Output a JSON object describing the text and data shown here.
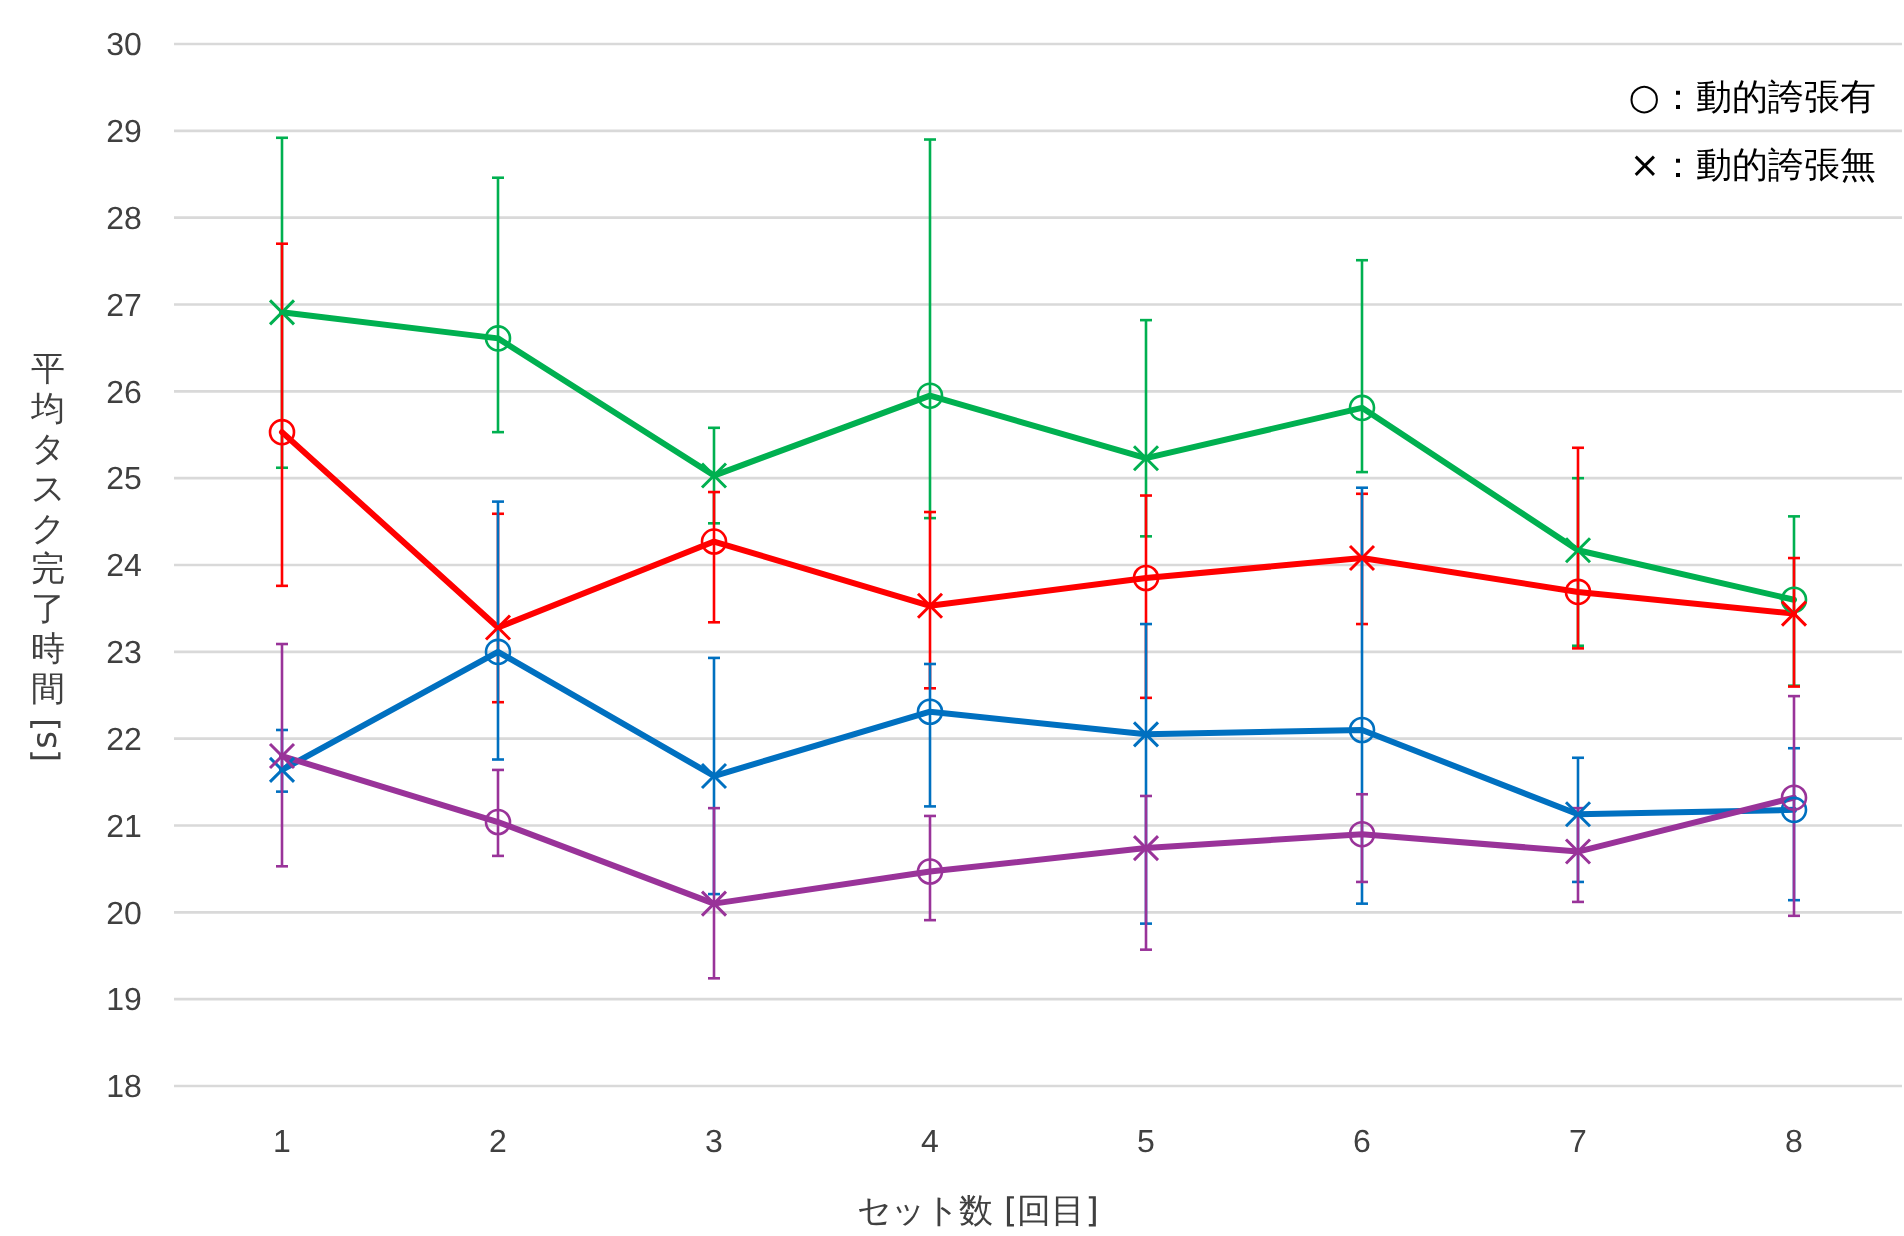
{
  "chart_data": {
    "type": "line",
    "xlabel": "セット数 [回目]",
    "ylabel": "平均タスク完了時間[s]",
    "categories": [
      "1",
      "2",
      "3",
      "4",
      "5",
      "6",
      "7",
      "8"
    ],
    "ylim": [
      18,
      30
    ],
    "yticks": [
      18,
      19,
      20,
      21,
      22,
      23,
      24,
      25,
      26,
      27,
      28,
      29,
      30
    ],
    "grid": "y",
    "annotations": [
      "○：動的誇張有",
      "×：動的誇張無"
    ],
    "marker": "none",
    "line_style": "solid",
    "series": [
      {
        "color": "#00b050",
        "values": [
          26.91,
          26.61,
          25.03,
          25.95,
          25.23,
          25.81,
          24.17,
          23.6
        ],
        "errors": [
          [
            25.12,
            28.92
          ],
          [
            25.53,
            28.46
          ],
          [
            24.48,
            25.58
          ],
          [
            24.54,
            28.9
          ],
          [
            24.33,
            26.82
          ],
          [
            25.07,
            27.51
          ],
          [
            23.07,
            25.0
          ],
          [
            22.61,
            24.56
          ]
        ]
      },
      {
        "color": "#ff0000",
        "values": [
          25.53,
          23.28,
          24.27,
          23.53,
          23.85,
          24.08,
          23.69,
          23.44
        ],
        "errors": [
          [
            23.76,
            27.7
          ],
          [
            22.42,
            24.59
          ],
          [
            23.34,
            24.84
          ],
          [
            22.58,
            24.61
          ],
          [
            22.47,
            24.8
          ],
          [
            23.32,
            24.82
          ],
          [
            23.04,
            25.35
          ],
          [
            22.6,
            24.08
          ]
        ]
      },
      {
        "color": "#0070c0",
        "values": [
          21.64,
          23.0,
          21.57,
          22.31,
          22.05,
          22.1,
          21.13,
          21.18
        ],
        "errors": [
          [
            21.39,
            22.1
          ],
          [
            21.76,
            24.73
          ],
          [
            20.21,
            22.93
          ],
          [
            21.22,
            22.86
          ],
          [
            19.87,
            23.32
          ],
          [
            20.1,
            24.89
          ],
          [
            20.35,
            21.78
          ],
          [
            20.14,
            21.89
          ]
        ]
      },
      {
        "color": "#993399",
        "values": [
          21.8,
          21.04,
          20.1,
          20.47,
          20.74,
          20.9,
          20.7,
          21.32
        ],
        "errors": [
          [
            20.53,
            23.09
          ],
          [
            20.65,
            21.64
          ],
          [
            19.24,
            21.2
          ],
          [
            19.91,
            21.11
          ],
          [
            19.57,
            21.34
          ],
          [
            20.35,
            21.36
          ],
          [
            20.12,
            21.2
          ],
          [
            19.96,
            22.49
          ]
        ]
      },
      {
        "type": "scatter",
        "marker": "circle",
        "x": [
          "2",
          "4",
          "6",
          "8",
          "1",
          "3",
          "5",
          "7",
          "2",
          "4",
          "6",
          "8",
          "2",
          "4",
          "6",
          "8"
        ],
        "values": [
          26.61,
          25.95,
          25.81,
          23.6,
          25.53,
          24.27,
          23.85,
          23.69,
          23.0,
          22.31,
          22.1,
          21.18,
          21.04,
          20.47,
          20.9,
          21.32
        ],
        "colors": [
          "#00b050",
          "#00b050",
          "#00b050",
          "#00b050",
          "#ff0000",
          "#ff0000",
          "#ff0000",
          "#ff0000",
          "#0070c0",
          "#0070c0",
          "#0070c0",
          "#0070c0",
          "#993399",
          "#993399",
          "#993399",
          "#993399"
        ]
      },
      {
        "type": "scatter",
        "marker": "cross",
        "x": [
          "1",
          "3",
          "5",
          "7",
          "2",
          "4",
          "6",
          "8",
          "1",
          "3",
          "5",
          "7",
          "1",
          "3",
          "5",
          "7"
        ],
        "values": [
          26.91,
          25.03,
          25.23,
          24.17,
          23.28,
          23.53,
          24.08,
          23.44,
          21.64,
          21.57,
          22.05,
          21.13,
          21.8,
          20.1,
          20.74,
          20.7
        ],
        "colors": [
          "#00b050",
          "#00b050",
          "#00b050",
          "#00b050",
          "#ff0000",
          "#ff0000",
          "#ff0000",
          "#ff0000",
          "#0070c0",
          "#0070c0",
          "#0070c0",
          "#0070c0",
          "#993399",
          "#993399",
          "#993399",
          "#993399"
        ]
      }
    ]
  }
}
